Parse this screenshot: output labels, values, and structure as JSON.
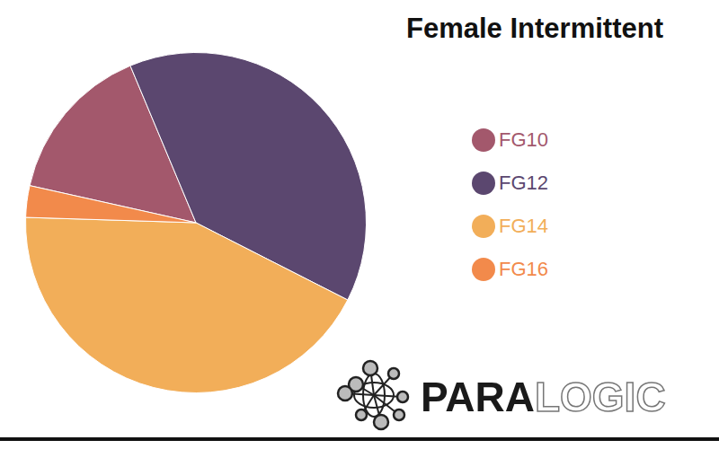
{
  "chart_data": {
    "type": "pie",
    "title": "Female Intermittent",
    "categories": [
      "FG10",
      "FG12",
      "FG14",
      "FG16"
    ],
    "values": [
      15.2,
      38.8,
      43.0,
      3.0
    ],
    "colors": [
      "#a3586c",
      "#5b476f",
      "#f2ae59",
      "#f28a4b"
    ],
    "legend": "right",
    "annotations": [
      "PARALOGIC"
    ]
  }
}
